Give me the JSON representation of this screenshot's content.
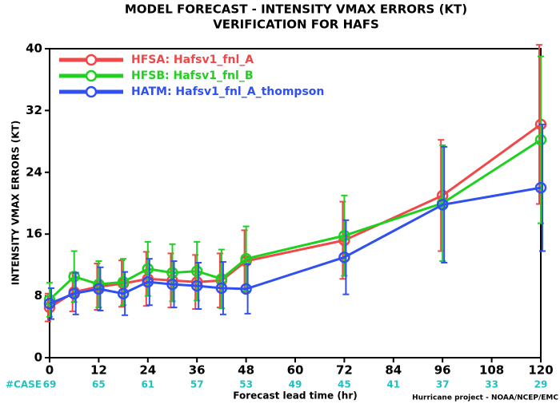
{
  "chart_data": {
    "type": "line",
    "title": "MODEL FORECAST - INTENSITY VMAX ERRORS (KT)",
    "subtitle": "VERIFICATION FOR HAFS",
    "y_label": "INTENSITY VMAX ERRORS (KT)",
    "x_label": "Forecast lead time (hr)",
    "footer": "Hurricane project - NOAA/NCEP/EMC",
    "case_label": "#CASE",
    "cases": [
      69,
      65,
      61,
      57,
      53,
      49,
      45,
      41,
      37,
      33,
      29
    ],
    "cases_color": "#20c0c0",
    "x": [
      0,
      6,
      12,
      18,
      24,
      30,
      36,
      42,
      48,
      72,
      96,
      120
    ],
    "xlim": [
      0,
      120
    ],
    "xticks": [
      0,
      12,
      24,
      36,
      48,
      60,
      72,
      84,
      96,
      108,
      120
    ],
    "ylim": [
      0,
      40
    ],
    "yticks": [
      0,
      8,
      16,
      24,
      32,
      40
    ],
    "legend": "upper left",
    "series": [
      {
        "name": "HFSA: Hafsv1_fnl_A",
        "color": "#f04848",
        "values": [
          6.5,
          8.5,
          9.2,
          9.6,
          10.2,
          10.0,
          9.8,
          10.0,
          12.5,
          15.2,
          21.0,
          30.2
        ],
        "errors": [
          1.8,
          2.5,
          3,
          3,
          3.5,
          3.5,
          3.5,
          3.5,
          4,
          5,
          7.2,
          10.3
        ]
      },
      {
        "name": "HFSB: Hafsv1_fnl_B",
        "color": "#20d020",
        "values": [
          7.5,
          10.5,
          9.5,
          9.8,
          11.5,
          11.0,
          11.2,
          10.2,
          12.8,
          15.8,
          20.0,
          28.2
        ],
        "errors": [
          2.2,
          3.3,
          3,
          3,
          3.5,
          3.7,
          3.8,
          3.8,
          4.2,
          5.2,
          7.5,
          10.8
        ]
      },
      {
        "name": "HATM: Hafsv1_fnl_A_thompson",
        "color": "#3050f0",
        "values": [
          7.0,
          8.3,
          8.9,
          8.3,
          9.8,
          9.5,
          9.3,
          9.0,
          8.9,
          13.0,
          19.8,
          22.0
        ],
        "errors": [
          2,
          2.7,
          2.8,
          2.8,
          3,
          3,
          3,
          3.4,
          3.2,
          4.8,
          7.5,
          8.2
        ]
      }
    ]
  }
}
